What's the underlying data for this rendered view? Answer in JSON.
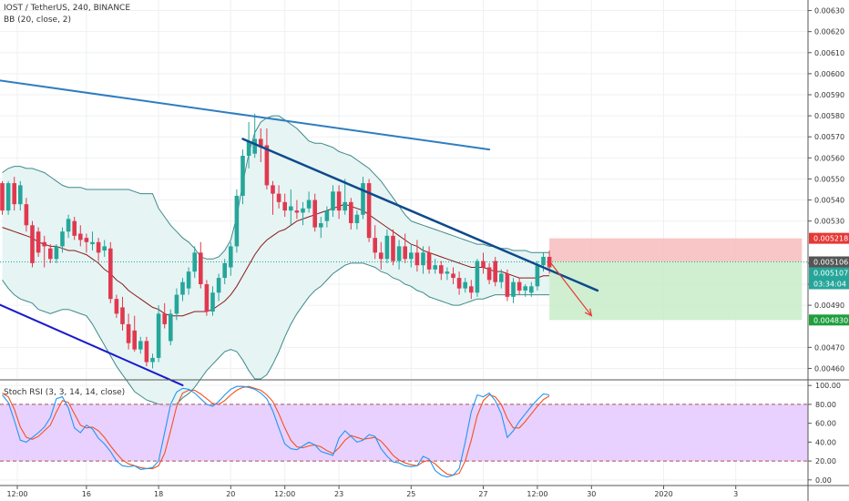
{
  "legend": {
    "symbol": "IOST / TetherUS, 240, BINANCE",
    "indicator": "BB (20, close, 2)",
    "rsi": "Stoch RSI (3, 3, 14, 14, close)"
  },
  "colors": {
    "up": "#26a69a",
    "down": "#e0394f",
    "basis": "#8b1a1a",
    "band": "#3f8a8a",
    "bandFill": "#e6f4f4",
    "grid": "#eef0f3",
    "axis": "#555555",
    "resistance_upper": "#2e7dc0",
    "resistance_lower": "#0d4a8c",
    "support": "#1a1acc",
    "stop": "#f7bcbc",
    "target": "#c8ecc8",
    "rsi_k": "#2196f3",
    "rsi_d": "#f4511e",
    "rsi_band": "#e6ccff",
    "arrow": "#e53935",
    "badge_stop": "#e53935",
    "badge_last": "#555555",
    "badge_target": "#1e9e3e"
  },
  "badges": {
    "stop": "0.005218",
    "last": "0.005106",
    "entry": "0.005107",
    "timer": "03:34:04",
    "target": "0.004830"
  },
  "chart_data": {
    "type": "candlestick",
    "title": "IOST / TetherUS, 240, BINANCE",
    "price_axis": {
      "ylim": [
        0.00455,
        0.00635
      ],
      "ticks": [
        "0.00630",
        "0.00620",
        "0.00610",
        "0.00600",
        "0.00590",
        "0.00580",
        "0.00570",
        "0.00560",
        "0.00550",
        "0.00540",
        "0.00530",
        "0.00510",
        "0.00500",
        "0.00490",
        "0.00470",
        "0.00460"
      ],
      "tick_values": [
        0.0063,
        0.0062,
        0.0061,
        0.006,
        0.0059,
        0.0058,
        0.0057,
        0.0056,
        0.0055,
        0.0054,
        0.0053,
        0.0051,
        0.005,
        0.0049,
        0.0047,
        0.0046
      ]
    },
    "time_axis": {
      "labels": [
        "12:00",
        "16",
        "18",
        "20",
        "12:00",
        "23",
        "25",
        "27",
        "12:00",
        "30",
        "2020",
        "3"
      ],
      "bar_index": [
        2.5,
        14,
        26,
        38,
        47,
        56,
        68,
        80,
        89,
        98,
        110,
        122
      ]
    },
    "rsi_axis": {
      "ylim": [
        -5,
        105
      ],
      "ticks": [
        "100.00",
        "80.00",
        "60.00",
        "40.00",
        "20.00",
        "0.00"
      ],
      "tick_values": [
        100,
        80,
        60,
        40,
        20,
        0
      ],
      "band": [
        20,
        80
      ]
    },
    "candles": [
      {
        "o": 0.00548,
        "h": 0.00549,
        "l": 0.00533,
        "c": 0.00535
      },
      {
        "o": 0.00535,
        "h": 0.00549,
        "l": 0.00533,
        "c": 0.00548
      },
      {
        "o": 0.00548,
        "h": 0.00551,
        "l": 0.00535,
        "c": 0.00538
      },
      {
        "o": 0.00538,
        "h": 0.00549,
        "l": 0.00535,
        "c": 0.00547
      },
      {
        "o": 0.00538,
        "h": 0.00541,
        "l": 0.00525,
        "c": 0.00528
      },
      {
        "o": 0.00528,
        "h": 0.0053,
        "l": 0.00508,
        "c": 0.0051
      },
      {
        "o": 0.00525,
        "h": 0.00527,
        "l": 0.00513,
        "c": 0.00515
      },
      {
        "o": 0.0052,
        "h": 0.00523,
        "l": 0.00508,
        "c": 0.00518
      },
      {
        "o": 0.00517,
        "h": 0.00519,
        "l": 0.0051,
        "c": 0.00512
      },
      {
        "o": 0.00512,
        "h": 0.00519,
        "l": 0.0051,
        "c": 0.00518
      },
      {
        "o": 0.00518,
        "h": 0.00527,
        "l": 0.00515,
        "c": 0.00525
      },
      {
        "o": 0.00525,
        "h": 0.00533,
        "l": 0.00522,
        "c": 0.00531
      },
      {
        "o": 0.0053,
        "h": 0.00532,
        "l": 0.00521,
        "c": 0.00523
      },
      {
        "o": 0.00524,
        "h": 0.00528,
        "l": 0.00518,
        "c": 0.00521
      },
      {
        "o": 0.00522,
        "h": 0.00524,
        "l": 0.00515,
        "c": 0.0052
      },
      {
        "o": 0.00519,
        "h": 0.00525,
        "l": 0.00516,
        "c": 0.0052
      },
      {
        "o": 0.0052,
        "h": 0.00522,
        "l": 0.00511,
        "c": 0.00515
      },
      {
        "o": 0.00516,
        "h": 0.00521,
        "l": 0.00513,
        "c": 0.00518
      },
      {
        "o": 0.00517,
        "h": 0.0052,
        "l": 0.00491,
        "c": 0.00493
      },
      {
        "o": 0.00493,
        "h": 0.00495,
        "l": 0.00484,
        "c": 0.00486
      },
      {
        "o": 0.00489,
        "h": 0.00494,
        "l": 0.00478,
        "c": 0.00481
      },
      {
        "o": 0.00481,
        "h": 0.00486,
        "l": 0.00469,
        "c": 0.00472
      },
      {
        "o": 0.00478,
        "h": 0.00485,
        "l": 0.00468,
        "c": 0.00469
      },
      {
        "o": 0.00469,
        "h": 0.00475,
        "l": 0.00467,
        "c": 0.00473
      },
      {
        "o": 0.00473,
        "h": 0.00475,
        "l": 0.00461,
        "c": 0.00463
      },
      {
        "o": 0.00463,
        "h": 0.00467,
        "l": 0.0046,
        "c": 0.00465
      },
      {
        "o": 0.00465,
        "h": 0.0049,
        "l": 0.00463,
        "c": 0.00486
      },
      {
        "o": 0.00486,
        "h": 0.00491,
        "l": 0.00479,
        "c": 0.00481
      },
      {
        "o": 0.00473,
        "h": 0.00488,
        "l": 0.00471,
        "c": 0.00486
      },
      {
        "o": 0.00486,
        "h": 0.00498,
        "l": 0.00483,
        "c": 0.00495
      },
      {
        "o": 0.00495,
        "h": 0.00503,
        "l": 0.00492,
        "c": 0.00501
      },
      {
        "o": 0.00498,
        "h": 0.00508,
        "l": 0.00495,
        "c": 0.00506
      },
      {
        "o": 0.00506,
        "h": 0.00518,
        "l": 0.00503,
        "c": 0.00515
      },
      {
        "o": 0.00515,
        "h": 0.0052,
        "l": 0.00498,
        "c": 0.005
      },
      {
        "o": 0.005,
        "h": 0.00502,
        "l": 0.00485,
        "c": 0.00487
      },
      {
        "o": 0.00487,
        "h": 0.00499,
        "l": 0.00485,
        "c": 0.00496
      },
      {
        "o": 0.00496,
        "h": 0.00505,
        "l": 0.00492,
        "c": 0.00503
      },
      {
        "o": 0.00503,
        "h": 0.00512,
        "l": 0.005,
        "c": 0.0051
      },
      {
        "o": 0.00508,
        "h": 0.0052,
        "l": 0.00504,
        "c": 0.00518
      },
      {
        "o": 0.00518,
        "h": 0.00545,
        "l": 0.00515,
        "c": 0.00542
      },
      {
        "o": 0.00542,
        "h": 0.00564,
        "l": 0.00538,
        "c": 0.00561
      },
      {
        "o": 0.00561,
        "h": 0.00577,
        "l": 0.00555,
        "c": 0.00568
      },
      {
        "o": 0.00562,
        "h": 0.00581,
        "l": 0.0056,
        "c": 0.00569
      },
      {
        "o": 0.00569,
        "h": 0.00574,
        "l": 0.00558,
        "c": 0.00565
      },
      {
        "o": 0.00566,
        "h": 0.00574,
        "l": 0.00545,
        "c": 0.00547
      },
      {
        "o": 0.00547,
        "h": 0.00549,
        "l": 0.00533,
        "c": 0.00543
      },
      {
        "o": 0.00543,
        "h": 0.00547,
        "l": 0.00536,
        "c": 0.00539
      },
      {
        "o": 0.00539,
        "h": 0.00543,
        "l": 0.00532,
        "c": 0.00535
      },
      {
        "o": 0.00535,
        "h": 0.00545,
        "l": 0.00528,
        "c": 0.00537
      },
      {
        "o": 0.00535,
        "h": 0.0054,
        "l": 0.00531,
        "c": 0.00534
      },
      {
        "o": 0.00534,
        "h": 0.00539,
        "l": 0.00528,
        "c": 0.00536
      },
      {
        "o": 0.00536,
        "h": 0.00544,
        "l": 0.00534,
        "c": 0.0054
      },
      {
        "o": 0.0054,
        "h": 0.00543,
        "l": 0.00525,
        "c": 0.00527
      },
      {
        "o": 0.00527,
        "h": 0.00532,
        "l": 0.00522,
        "c": 0.00529
      },
      {
        "o": 0.0053,
        "h": 0.00537,
        "l": 0.00527,
        "c": 0.00535
      },
      {
        "o": 0.00535,
        "h": 0.00547,
        "l": 0.00532,
        "c": 0.00544
      },
      {
        "o": 0.00544,
        "h": 0.00547,
        "l": 0.00531,
        "c": 0.00535
      },
      {
        "o": 0.00535,
        "h": 0.0055,
        "l": 0.00533,
        "c": 0.00539
      },
      {
        "o": 0.00539,
        "h": 0.00541,
        "l": 0.00526,
        "c": 0.00529
      },
      {
        "o": 0.00529,
        "h": 0.00535,
        "l": 0.00526,
        "c": 0.00533
      },
      {
        "o": 0.00533,
        "h": 0.00551,
        "l": 0.00531,
        "c": 0.00548
      },
      {
        "o": 0.00548,
        "h": 0.0055,
        "l": 0.0052,
        "c": 0.00522
      },
      {
        "o": 0.00522,
        "h": 0.00528,
        "l": 0.00512,
        "c": 0.00515
      },
      {
        "o": 0.00515,
        "h": 0.0052,
        "l": 0.00507,
        "c": 0.00512
      },
      {
        "o": 0.00512,
        "h": 0.00526,
        "l": 0.0051,
        "c": 0.00523
      },
      {
        "o": 0.00523,
        "h": 0.00526,
        "l": 0.00509,
        "c": 0.00511
      },
      {
        "o": 0.00511,
        "h": 0.00521,
        "l": 0.00507,
        "c": 0.00518
      },
      {
        "o": 0.00518,
        "h": 0.00524,
        "l": 0.0051,
        "c": 0.00512
      },
      {
        "o": 0.00512,
        "h": 0.00519,
        "l": 0.00508,
        "c": 0.00515
      },
      {
        "o": 0.00515,
        "h": 0.00521,
        "l": 0.00506,
        "c": 0.00509
      },
      {
        "o": 0.00509,
        "h": 0.00518,
        "l": 0.00505,
        "c": 0.00515
      },
      {
        "o": 0.00515,
        "h": 0.00518,
        "l": 0.00505,
        "c": 0.00507
      },
      {
        "o": 0.00507,
        "h": 0.00512,
        "l": 0.00505,
        "c": 0.00509
      },
      {
        "o": 0.00509,
        "h": 0.00511,
        "l": 0.00502,
        "c": 0.00505
      },
      {
        "o": 0.00505,
        "h": 0.00508,
        "l": 0.00502,
        "c": 0.00506
      },
      {
        "o": 0.00505,
        "h": 0.00508,
        "l": 0.005,
        "c": 0.00503
      },
      {
        "o": 0.00503,
        "h": 0.00506,
        "l": 0.00495,
        "c": 0.00498
      },
      {
        "o": 0.00498,
        "h": 0.00503,
        "l": 0.00496,
        "c": 0.00501
      },
      {
        "o": 0.00499,
        "h": 0.00502,
        "l": 0.00493,
        "c": 0.00496
      },
      {
        "o": 0.00496,
        "h": 0.00512,
        "l": 0.00494,
        "c": 0.00511
      },
      {
        "o": 0.00511,
        "h": 0.00515,
        "l": 0.00505,
        "c": 0.00508
      },
      {
        "o": 0.00508,
        "h": 0.0051,
        "l": 0.005,
        "c": 0.00502
      },
      {
        "o": 0.00511,
        "h": 0.00513,
        "l": 0.00499,
        "c": 0.00501
      },
      {
        "o": 0.00501,
        "h": 0.00507,
        "l": 0.00498,
        "c": 0.00505
      },
      {
        "o": 0.00505,
        "h": 0.00507,
        "l": 0.00492,
        "c": 0.00494
      },
      {
        "o": 0.00494,
        "h": 0.00503,
        "l": 0.00491,
        "c": 0.00501
      },
      {
        "o": 0.00501,
        "h": 0.00503,
        "l": 0.00495,
        "c": 0.00497
      },
      {
        "o": 0.00497,
        "h": 0.005,
        "l": 0.00494,
        "c": 0.00499
      },
      {
        "o": 0.00496,
        "h": 0.00501,
        "l": 0.00494,
        "c": 0.00499
      },
      {
        "o": 0.00499,
        "h": 0.00511,
        "l": 0.00497,
        "c": 0.00509
      },
      {
        "o": 0.00509,
        "h": 0.00515,
        "l": 0.00506,
        "c": 0.00513
      },
      {
        "o": 0.00513,
        "h": 0.00516,
        "l": 0.00505,
        "c": 0.00508
      }
    ],
    "bb_basis": [
      0.00527,
      0.00526,
      0.00525,
      0.00524,
      0.00523,
      0.00522,
      0.0052,
      0.00519,
      0.00518,
      0.00518,
      0.00517,
      0.00516,
      0.00516,
      0.00515,
      0.00514,
      0.00512,
      0.0051,
      0.00507,
      0.00505,
      0.00502,
      0.005,
      0.00497,
      0.00495,
      0.00493,
      0.00491,
      0.00489,
      0.00488,
      0.00486,
      0.00485,
      0.00485,
      0.00485,
      0.00486,
      0.00487,
      0.00487,
      0.00487,
      0.00488,
      0.0049,
      0.00492,
      0.00495,
      0.00499,
      0.00504,
      0.00509,
      0.00514,
      0.00518,
      0.00521,
      0.00523,
      0.00525,
      0.00526,
      0.00528,
      0.0053,
      0.00531,
      0.00532,
      0.00533,
      0.00534,
      0.00535,
      0.00536,
      0.00537,
      0.00538,
      0.00537,
      0.00536,
      0.00535,
      0.00533,
      0.00531,
      0.00529,
      0.00527,
      0.00525,
      0.00523,
      0.00521,
      0.00519,
      0.00518,
      0.00516,
      0.00515,
      0.00514,
      0.00513,
      0.00512,
      0.00511,
      0.0051,
      0.00509,
      0.00508,
      0.00508,
      0.00508,
      0.00507,
      0.00506,
      0.00506,
      0.00505,
      0.00504,
      0.00503,
      0.00503,
      0.00503,
      0.00503,
      0.00504,
      0.00504
    ],
    "bb_upper": [
      0.00553,
      0.00555,
      0.00556,
      0.00556,
      0.00555,
      0.00555,
      0.00554,
      0.00553,
      0.00551,
      0.00549,
      0.00547,
      0.00546,
      0.00546,
      0.00546,
      0.00545,
      0.00545,
      0.00545,
      0.00545,
      0.00545,
      0.00545,
      0.00545,
      0.00545,
      0.00544,
      0.00543,
      0.00543,
      0.00543,
      0.00536,
      0.00532,
      0.00528,
      0.00525,
      0.00522,
      0.0052,
      0.00517,
      0.00513,
      0.00512,
      0.00512,
      0.00513,
      0.00516,
      0.00521,
      0.00532,
      0.00548,
      0.00562,
      0.00572,
      0.00577,
      0.00579,
      0.0058,
      0.0058,
      0.00578,
      0.00576,
      0.00574,
      0.00571,
      0.00568,
      0.00567,
      0.00567,
      0.00566,
      0.00565,
      0.00563,
      0.00562,
      0.00561,
      0.00559,
      0.00557,
      0.00555,
      0.00552,
      0.00549,
      0.00545,
      0.00541,
      0.00537,
      0.00533,
      0.0053,
      0.00529,
      0.00528,
      0.00527,
      0.00526,
      0.00525,
      0.00524,
      0.00523,
      0.00522,
      0.00521,
      0.0052,
      0.00519,
      0.00519,
      0.00518,
      0.00518,
      0.00517,
      0.00517,
      0.00516,
      0.00516,
      0.00516,
      0.00515,
      0.00515,
      0.00515,
      0.00515
    ],
    "bb_lower": [
      0.00502,
      0.00498,
      0.00495,
      0.00493,
      0.00492,
      0.00491,
      0.00488,
      0.00487,
      0.00486,
      0.00487,
      0.00488,
      0.00488,
      0.00487,
      0.00486,
      0.00485,
      0.00481,
      0.00476,
      0.00471,
      0.00466,
      0.00461,
      0.00457,
      0.00453,
      0.00449,
      0.00447,
      0.00445,
      0.00444,
      0.00443,
      0.00442,
      0.00442,
      0.00443,
      0.00446,
      0.00448,
      0.00451,
      0.00455,
      0.00459,
      0.00462,
      0.00465,
      0.00468,
      0.00469,
      0.00468,
      0.00464,
      0.00459,
      0.00455,
      0.00455,
      0.00457,
      0.00462,
      0.00468,
      0.00475,
      0.00481,
      0.00486,
      0.0049,
      0.00494,
      0.00497,
      0.00499,
      0.00502,
      0.00505,
      0.00507,
      0.00509,
      0.0051,
      0.0051,
      0.0051,
      0.00509,
      0.00508,
      0.00506,
      0.00505,
      0.00503,
      0.00502,
      0.005,
      0.00499,
      0.00497,
      0.00496,
      0.00494,
      0.00493,
      0.00492,
      0.00491,
      0.0049,
      0.0049,
      0.00491,
      0.00492,
      0.00493,
      0.00493,
      0.00494,
      0.00495,
      0.00495,
      0.00495,
      0.00495,
      0.00495,
      0.00495,
      0.00495,
      0.00495,
      0.00495,
      0.00495
    ],
    "trendlines": [
      {
        "name": "resistance_upper",
        "x1": -1,
        "y1": 0.00597,
        "x2": 81,
        "y2": 0.00564
      },
      {
        "name": "resistance_lower",
        "x1": 40,
        "y1": 0.00569,
        "x2": 99,
        "y2": 0.00497
      },
      {
        "name": "support",
        "x1": -1,
        "y1": 0.00491,
        "x2": 30,
        "y2": 0.00452
      }
    ],
    "last_price": 0.005106,
    "position": {
      "entry": 0.005107,
      "stop": 0.005218,
      "target": 0.00483,
      "x_start": 91,
      "x_end": 133
    },
    "projection_arrow": {
      "x1": 91,
      "y1": 0.00511,
      "x2": 98,
      "y2": 0.00485
    },
    "stoch_rsi_k": [
      90,
      82,
      63,
      42,
      40,
      45,
      50,
      56,
      66,
      86,
      88,
      76,
      55,
      50,
      58,
      54,
      44,
      38,
      30,
      20,
      15,
      14,
      15,
      11,
      12,
      13,
      20,
      50,
      80,
      93,
      97,
      96,
      92,
      86,
      80,
      78,
      83,
      90,
      96,
      99,
      99,
      98,
      96,
      92,
      86,
      73,
      55,
      38,
      33,
      32,
      36,
      40,
      37,
      30,
      28,
      26,
      44,
      52,
      46,
      40,
      42,
      48,
      46,
      33,
      25,
      19,
      18,
      15,
      14,
      15,
      25,
      22,
      10,
      5,
      3,
      5,
      12,
      40,
      72,
      90,
      88,
      92,
      84,
      70,
      45,
      52,
      62,
      70,
      78,
      85,
      91,
      90
    ],
    "stoch_rsi_d": [
      92,
      88,
      75,
      56,
      45,
      43,
      46,
      52,
      58,
      72,
      84,
      82,
      70,
      58,
      55,
      56,
      52,
      45,
      36,
      28,
      21,
      17,
      15,
      13,
      12,
      12,
      15,
      28,
      52,
      78,
      92,
      95,
      95,
      91,
      86,
      81,
      80,
      84,
      90,
      95,
      98,
      99,
      97,
      95,
      90,
      83,
      70,
      55,
      42,
      35,
      34,
      36,
      37,
      35,
      31,
      28,
      34,
      42,
      47,
      45,
      43,
      44,
      45,
      41,
      34,
      26,
      21,
      18,
      16,
      15,
      19,
      21,
      17,
      11,
      6,
      5,
      7,
      20,
      42,
      68,
      84,
      90,
      88,
      80,
      65,
      55,
      55,
      62,
      70,
      78,
      85,
      89
    ]
  }
}
